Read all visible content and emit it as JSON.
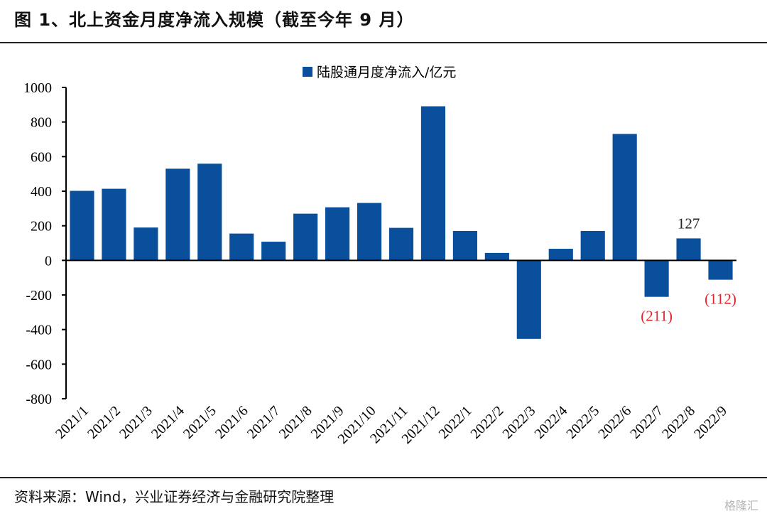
{
  "header": {
    "title": "图 1、北上资金月度净流入规模（截至今年 9 月）"
  },
  "footer": {
    "source": "资料来源：Wind，兴业证券经济与金融研究院整理",
    "watermark": "格隆汇"
  },
  "chart_data": {
    "type": "bar",
    "categories": [
      "2021/1",
      "2021/2",
      "2021/3",
      "2021/4",
      "2021/5",
      "2021/6",
      "2021/7",
      "2021/8",
      "2021/9",
      "2021/10",
      "2021/11",
      "2021/12",
      "2022/1",
      "2022/2",
      "2022/3",
      "2022/4",
      "2022/5",
      "2022/6",
      "2022/7",
      "2022/8",
      "2022/9"
    ],
    "series": [
      {
        "name": "陆股通月度净流入/亿元",
        "color": "#0a4f9c",
        "values": [
          402,
          414,
          190,
          530,
          559,
          155,
          108,
          270,
          307,
          332,
          188,
          891,
          170,
          43,
          -454,
          67,
          170,
          731,
          -211,
          127,
          -112
        ]
      }
    ],
    "ylim": [
      -800,
      1000
    ],
    "yticks": [
      -800,
      -600,
      -400,
      -200,
      0,
      200,
      400,
      600,
      800,
      1000
    ],
    "data_labels": [
      {
        "category": "2022/7",
        "text": "(211)",
        "color": "#e0242b"
      },
      {
        "category": "2022/8",
        "text": "127",
        "color": "#222222"
      },
      {
        "category": "2022/9",
        "text": "(112)",
        "color": "#e0242b"
      }
    ],
    "legend_position": "top-center",
    "grid": false
  }
}
